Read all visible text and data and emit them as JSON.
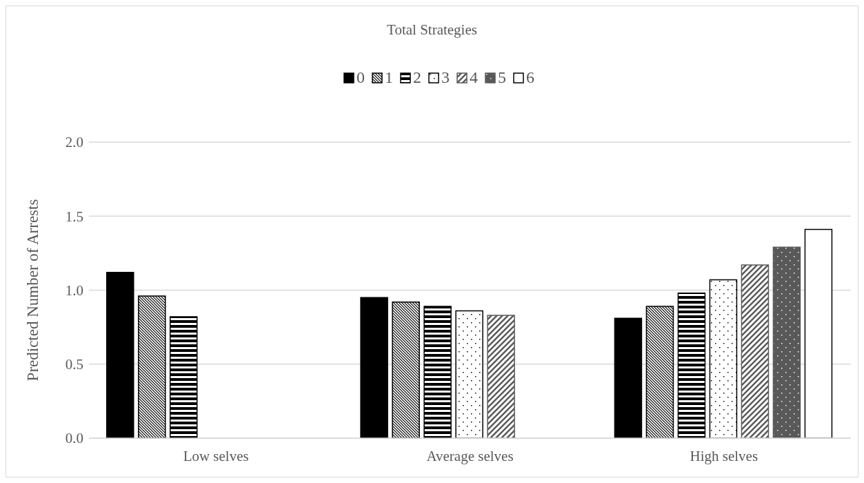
{
  "chart_data": {
    "type": "bar",
    "legend_title": "Total Strategies",
    "ylabel": "Predicted Number of Arrests",
    "categories": [
      "Low selves",
      "Average selves",
      "High selves"
    ],
    "series": [
      {
        "name": "0",
        "color": "#000000",
        "values": [
          1.12,
          0.95,
          0.81
        ]
      },
      {
        "name": "1",
        "color": "#000000",
        "values": [
          0.96,
          0.92,
          0.89
        ]
      },
      {
        "name": "2",
        "color": "#000000",
        "values": [
          0.82,
          0.89,
          0.98
        ]
      },
      {
        "name": "3",
        "color": "#000000",
        "values": [
          null,
          0.86,
          1.07
        ]
      },
      {
        "name": "4",
        "color": "#595959",
        "values": [
          null,
          0.83,
          1.17
        ]
      },
      {
        "name": "5",
        "color": "#595959",
        "values": [
          null,
          null,
          1.29
        ]
      },
      {
        "name": "6",
        "color": "#000000",
        "values": [
          null,
          null,
          1.41
        ]
      }
    ],
    "ylim": [
      0,
      2
    ],
    "yticks": [
      {
        "value": 0,
        "label": "0.0"
      },
      {
        "value": 0.5,
        "label": "0.5"
      },
      {
        "value": 1,
        "label": "1.0"
      },
      {
        "value": 1.5,
        "label": "1.5"
      },
      {
        "value": 2,
        "label": "2.0"
      }
    ],
    "grid": "y",
    "legend": "top"
  }
}
